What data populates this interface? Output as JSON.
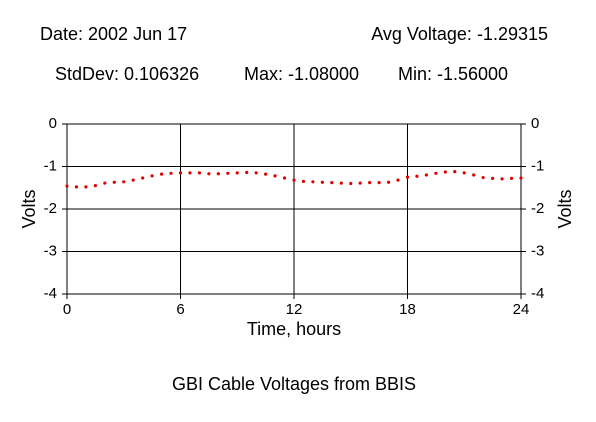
{
  "chart_data": {
    "type": "line",
    "title": "GBI Cable Voltages from BBIS",
    "annotations": [
      "Date: 2002 Jun 17",
      "Avg Voltage: -1.29315",
      "StdDev: 0.106326",
      "Max: -1.08000",
      "Min: -1.56000"
    ],
    "x_label": "Time, hours",
    "y_label": "Volts",
    "y2_label": "Volts",
    "x": [
      0,
      0.5,
      1,
      1.5,
      2,
      2.5,
      3,
      3.5,
      4,
      4.5,
      5,
      5.5,
      6,
      6.5,
      7,
      7.5,
      8,
      8.5,
      9,
      9.5,
      10,
      10.5,
      11,
      11.5,
      12,
      12.5,
      13,
      13.5,
      14,
      14.5,
      15,
      15.5,
      16,
      16.5,
      17,
      17.5,
      18,
      18.5,
      19,
      19.5,
      20,
      20.5,
      21,
      21.5,
      22,
      22.5,
      23,
      23.5,
      24
    ],
    "series": [
      {
        "color": "#dd0000",
        "values": [
          -1.46,
          -1.48,
          -1.48,
          -1.45,
          -1.39,
          -1.37,
          -1.36,
          -1.32,
          -1.27,
          -1.22,
          -1.18,
          -1.16,
          -1.15,
          -1.15,
          -1.15,
          -1.17,
          -1.17,
          -1.16,
          -1.15,
          -1.14,
          -1.15,
          -1.18,
          -1.22,
          -1.27,
          -1.32,
          -1.35,
          -1.36,
          -1.37,
          -1.38,
          -1.39,
          -1.4,
          -1.39,
          -1.38,
          -1.38,
          -1.37,
          -1.32,
          -1.25,
          -1.23,
          -1.2,
          -1.16,
          -1.13,
          -1.12,
          -1.15,
          -1.2,
          -1.26,
          -1.28,
          -1.29,
          -1.28,
          -1.27
        ]
      }
    ],
    "xlim": [
      0,
      24
    ],
    "xticks": [
      0,
      6,
      12,
      18,
      24
    ],
    "ylim": [
      -4,
      0
    ],
    "yticks": [
      0,
      -1,
      -2,
      -3,
      -4
    ],
    "grid": true
  }
}
